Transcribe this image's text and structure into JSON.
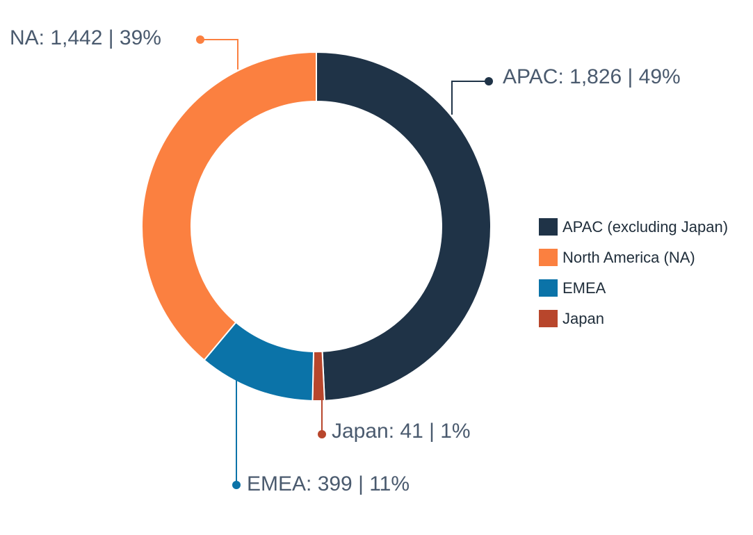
{
  "chart_data": {
    "type": "pie",
    "variant": "donut",
    "slices": [
      {
        "label": "APAC (excluding Japan)",
        "short": "APAC",
        "value": 1826,
        "percent": "49%",
        "color": "#1f3347"
      },
      {
        "label": "Japan",
        "short": "Japan",
        "value": 41,
        "percent": "1%",
        "color": "#b8462c"
      },
      {
        "label": "EMEA",
        "short": "EMEA",
        "value": 399,
        "percent": "11%",
        "color": "#0b73a8"
      },
      {
        "label": "North America (NA)",
        "short": "NA",
        "value": 1442,
        "percent": "39%",
        "color": "#fb8040"
      }
    ],
    "callouts": [
      {
        "text": "APAC: 1,826 | 49%",
        "color": "#1f3347"
      },
      {
        "text": "Japan: 41 | 1%",
        "color": "#b8462c"
      },
      {
        "text": "EMEA: 399 | 11%",
        "color": "#0b73a8"
      },
      {
        "text": "NA: 1,442 | 39%",
        "color": "#fb8040"
      }
    ],
    "legend": {
      "position": "right",
      "items": [
        {
          "label": "APAC (excluding Japan)",
          "color": "#1f3347"
        },
        {
          "label": "North America (NA)",
          "color": "#fb8040"
        },
        {
          "label": "EMEA",
          "color": "#0b73a8"
        },
        {
          "label": "Japan",
          "color": "#b8462c"
        }
      ]
    },
    "start_angle": "top",
    "direction": "clockwise"
  }
}
